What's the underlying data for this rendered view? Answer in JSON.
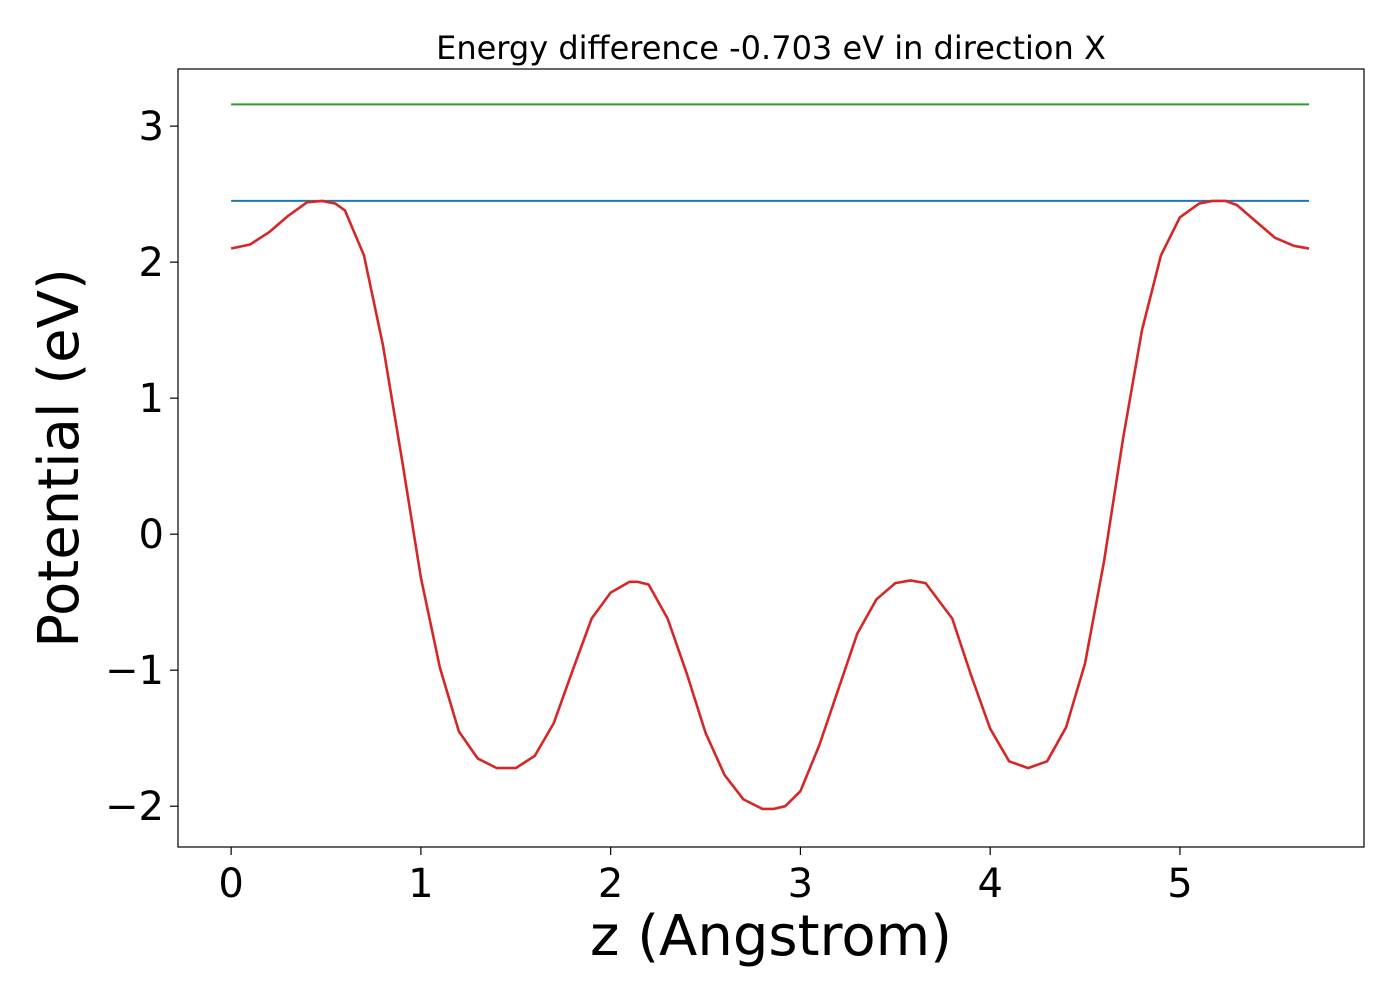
{
  "chart_data": {
    "type": "line",
    "title": "Energy difference -0.703 eV in direction X",
    "xlabel": "z (Angstrom)",
    "ylabel": "Potential (eV)",
    "xlim": [
      -0.28,
      5.97
    ],
    "ylim": [
      -2.3,
      3.42
    ],
    "grid": false,
    "x_ticks": [
      {
        "value": 0,
        "label": "0"
      },
      {
        "value": 1,
        "label": "1"
      },
      {
        "value": 2,
        "label": "2"
      },
      {
        "value": 3,
        "label": "3"
      },
      {
        "value": 4,
        "label": "4"
      },
      {
        "value": 5,
        "label": "5"
      }
    ],
    "y_ticks": [
      {
        "value": -2,
        "label": "−2"
      },
      {
        "value": -1,
        "label": "−1"
      },
      {
        "value": 0,
        "label": "0"
      },
      {
        "value": 1,
        "label": "1"
      },
      {
        "value": 2,
        "label": "2"
      },
      {
        "value": 3,
        "label": "3"
      }
    ],
    "series": [
      {
        "color": "#2ca02c",
        "x": [
          0,
          5.68
        ],
        "y": [
          3.16,
          3.16
        ]
      },
      {
        "color": "#1f77b4",
        "x": [
          0,
          5.68
        ],
        "y": [
          2.45,
          2.45
        ]
      },
      {
        "color": "#d62728",
        "x": [
          0,
          0.1,
          0.2,
          0.3,
          0.4,
          0.48,
          0.55,
          0.6,
          0.7,
          0.8,
          0.9,
          1.0,
          1.1,
          1.2,
          1.3,
          1.4,
          1.5,
          1.6,
          1.7,
          1.8,
          1.9,
          2.0,
          2.1,
          2.14,
          2.2,
          2.3,
          2.4,
          2.5,
          2.6,
          2.7,
          2.8,
          2.86,
          2.92,
          3.0,
          3.1,
          3.2,
          3.3,
          3.4,
          3.5,
          3.58,
          3.66,
          3.8,
          3.9,
          4.0,
          4.1,
          4.2,
          4.3,
          4.4,
          4.5,
          4.6,
          4.7,
          4.8,
          4.9,
          5.0,
          5.1,
          5.17,
          5.24,
          5.3,
          5.4,
          5.5,
          5.6,
          5.68
        ],
        "y": [
          2.1,
          2.13,
          2.22,
          2.34,
          2.44,
          2.45,
          2.43,
          2.38,
          2.05,
          1.39,
          0.55,
          -0.32,
          -0.98,
          -1.45,
          -1.65,
          -1.72,
          -1.72,
          -1.63,
          -1.39,
          -1.0,
          -0.62,
          -0.43,
          -0.35,
          -0.35,
          -0.37,
          -0.62,
          -1.02,
          -1.46,
          -1.77,
          -1.95,
          -2.02,
          -2.02,
          -2.0,
          -1.89,
          -1.55,
          -1.14,
          -0.73,
          -0.48,
          -0.36,
          -0.34,
          -0.36,
          -0.62,
          -1.04,
          -1.43,
          -1.67,
          -1.72,
          -1.67,
          -1.42,
          -0.95,
          -0.2,
          0.7,
          1.5,
          2.05,
          2.33,
          2.43,
          2.45,
          2.45,
          2.42,
          2.3,
          2.18,
          2.12,
          2.1
        ]
      }
    ]
  }
}
